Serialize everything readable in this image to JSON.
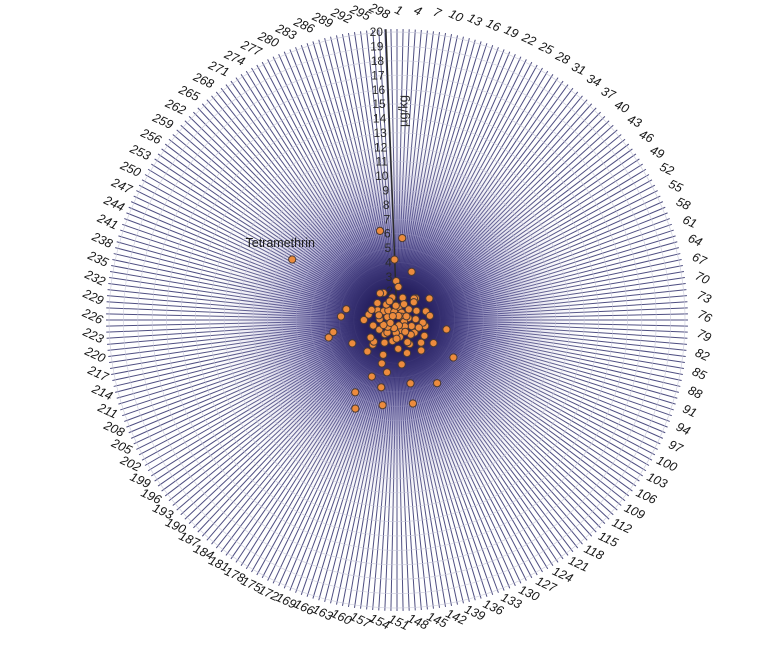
{
  "chart_data": {
    "type": "scatter",
    "subtype": "polar",
    "title": "",
    "ylabel": "µg/kg",
    "ylim": [
      0,
      20
    ],
    "grid": true,
    "angular_axis": {
      "total_spokes": 300,
      "label_step": 3,
      "tick_labels": [
        1,
        4,
        7,
        10,
        13,
        16,
        19,
        22,
        25,
        28,
        31,
        34,
        37,
        40,
        43,
        46,
        49,
        52,
        55,
        58,
        61,
        64,
        67,
        70,
        73,
        76,
        79,
        82,
        85,
        88,
        91,
        94,
        97,
        100,
        103,
        106,
        109,
        112,
        115,
        118,
        121,
        124,
        127,
        130,
        133,
        136,
        139,
        142,
        145,
        148,
        151,
        154,
        157,
        160,
        163,
        166,
        169,
        172,
        175,
        178,
        181,
        184,
        187,
        190,
        193,
        196,
        199,
        202,
        205,
        208,
        211,
        214,
        217,
        220,
        223,
        226,
        229,
        232,
        235,
        238,
        241,
        244,
        247,
        250,
        253,
        256,
        259,
        262,
        265,
        268,
        271,
        274,
        277,
        280,
        283,
        286,
        289,
        292,
        295,
        298
      ]
    },
    "radial_axis": {
      "label": "µg/kg",
      "tick_values": [
        2,
        3,
        4,
        5,
        6,
        7,
        8,
        9,
        10,
        11,
        12,
        13,
        14,
        15,
        16,
        17,
        18,
        19,
        20
      ],
      "max": 20
    },
    "annotated_point": {
      "spoke": 251,
      "value": 8.4,
      "label": "Tetramethrin"
    },
    "points": [
      [
        292,
        6.3
      ],
      [
        4,
        5.7
      ],
      [
        299,
        4.2
      ],
      [
        15,
        3.5
      ],
      [
        300,
        2.7
      ],
      [
        236,
        3.6
      ],
      [
        229,
        3.9
      ],
      [
        214,
        4.9
      ],
      [
        85,
        3.5
      ],
      [
        104,
        4.7
      ],
      [
        124,
        5.2
      ],
      [
        142,
        5.9
      ],
      [
        159,
        6.0
      ],
      [
        172,
        6.8
      ],
      [
        176,
        5.8
      ],
      [
        187,
        3.0
      ],
      [
        103,
        3.0
      ],
      [
        86,
        2.0
      ],
      [
        119,
        2.7
      ],
      [
        137,
        2.4
      ],
      [
        169,
        2.6
      ],
      [
        203,
        3.5
      ],
      [
        188,
        2.4
      ],
      [
        185,
        1.3
      ],
      [
        134,
        0.8
      ],
      [
        106,
        1.5
      ],
      [
        167,
        3.2
      ],
      [
        146,
        3.1
      ],
      [
        160,
        3.7
      ],
      [
        171,
        4.3
      ],
      [
        162,
        4.8
      ],
      [
        141,
        4.5
      ],
      [
        217,
        4.5
      ],
      [
        48,
        2.7
      ],
      [
        35,
        2.0
      ],
      [
        251,
        8.4
      ],
      [
        7,
        0.9
      ],
      [
        13,
        1.6
      ],
      [
        21,
        1.2
      ],
      [
        28,
        0.6
      ],
      [
        33,
        1.9
      ],
      [
        41,
        1.1
      ],
      [
        47,
        0.4
      ],
      [
        55,
        1.5
      ],
      [
        62,
        2.1
      ],
      [
        68,
        0.8
      ],
      [
        74,
        1.3
      ],
      [
        81,
        1.8
      ],
      [
        88,
        0.5
      ],
      [
        95,
        1.1
      ],
      [
        101,
        2.2
      ],
      [
        109,
        0.7
      ],
      [
        115,
        1.4
      ],
      [
        122,
        1.0
      ],
      [
        128,
        1.9
      ],
      [
        135,
        0.4
      ],
      [
        143,
        1.2
      ],
      [
        149,
        2.0
      ],
      [
        155,
        0.9
      ],
      [
        161,
        1.5
      ],
      [
        168,
        0.6
      ],
      [
        175,
        1.8
      ],
      [
        182,
        1.1
      ],
      [
        190,
        2.2
      ],
      [
        196,
        0.8
      ],
      [
        202,
        1.4
      ],
      [
        209,
        1.0
      ],
      [
        215,
        1.7
      ],
      [
        222,
        0.5
      ],
      [
        228,
        1.2
      ],
      [
        235,
        2.0
      ],
      [
        241,
        0.7
      ],
      [
        248,
        1.5
      ],
      [
        254,
        1.1
      ],
      [
        260,
        1.8
      ],
      [
        266,
        0.9
      ],
      [
        272,
        1.3
      ],
      [
        279,
        2.1
      ],
      [
        285,
        0.6
      ],
      [
        291,
        1.6
      ],
      [
        297,
        1.0
      ],
      [
        3,
        2.3
      ],
      [
        18,
        0.3
      ],
      [
        58,
        0.7
      ],
      [
        92,
        1.6
      ],
      [
        112,
        2.3
      ],
      [
        152,
        1.3
      ],
      [
        198,
        2.2
      ],
      [
        226,
        2.3
      ],
      [
        244,
        1.9
      ],
      [
        262,
        0.4
      ],
      [
        283,
        1.4
      ],
      [
        37,
        1.7
      ],
      [
        70,
        2.3
      ],
      [
        130,
        1.7
      ],
      [
        206,
        0.5
      ],
      [
        238,
        1.3
      ],
      [
        274,
        2.2
      ]
    ],
    "colors": {
      "spoke": "#44447a",
      "grid_circle": "#c7c7da",
      "axis_line": "#2b2b2b",
      "tick_text": "#2a2a2a",
      "spoke_label": "#161616",
      "point_fill": "#ec8b3d",
      "point_stroke": "#4d3b33",
      "glow_core": "#201a55",
      "glow_mid": "#544c94",
      "glow_outer": "#b3aed3"
    }
  }
}
